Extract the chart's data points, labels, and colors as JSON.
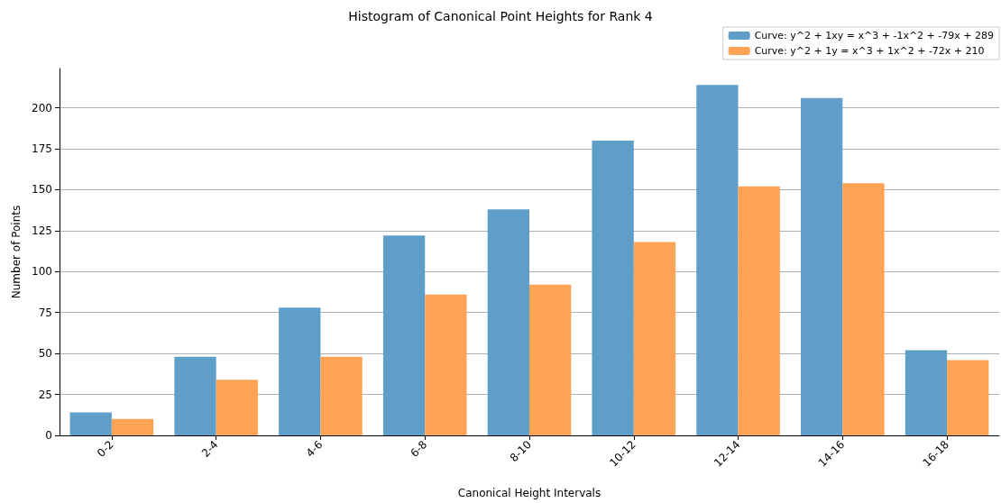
{
  "chart_data": {
    "type": "bar",
    "title": "Histogram of Canonical Point Heights for Rank 4",
    "xlabel": "Canonical Height Intervals",
    "ylabel": "Number of Points",
    "categories": [
      "0-2",
      "2-4",
      "4-6",
      "6-8",
      "8-10",
      "10-12",
      "12-14",
      "14-16",
      "16-18"
    ],
    "series": [
      {
        "name": "Curve: y^2 + 1xy = x^3 + -1x^2 + -79x + 289",
        "color": "#5f9ec9",
        "values": [
          14,
          48,
          78,
          122,
          138,
          180,
          214,
          206,
          52
        ]
      },
      {
        "name": "Curve: y^2 + 1y = x^3 + 1x^2 + -72x + 210",
        "color": "#ffa354",
        "values": [
          10,
          34,
          48,
          86,
          92,
          118,
          152,
          154,
          46
        ]
      }
    ],
    "ylim": [
      0,
      224
    ],
    "yticks": [
      0,
      25,
      50,
      75,
      100,
      125,
      150,
      175,
      200
    ],
    "grid": "y",
    "legend": "top right"
  }
}
